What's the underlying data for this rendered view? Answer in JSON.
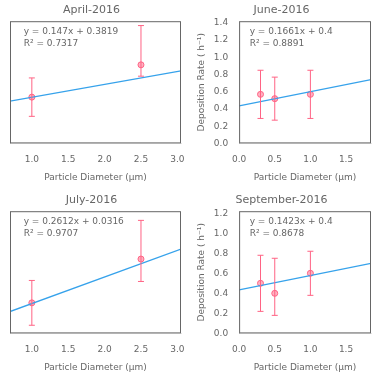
{
  "chart_data": [
    {
      "type": "scatter",
      "title": "April-2016",
      "x_label": "Particle Diameter (μm)",
      "annotations": [
        "y = 0.147x + 0.3819",
        "R² = 0.7317"
      ],
      "series": [
        {
          "type": "line",
          "x": [
            0.7,
            3.05
          ],
          "values": [
            0.4848,
            0.83025
          ]
        },
        {
          "type": "scatter",
          "marker": "circle",
          "x": [
            1.0,
            2.5
          ],
          "values": [
            0.53,
            0.9
          ],
          "error_low": [
            0.22,
            0.13
          ],
          "error_high": [
            0.22,
            0.45
          ]
        }
      ],
      "xlim": [
        0.7,
        3.05
      ],
      "ylim": [
        0.0,
        1.4
      ],
      "xticks": [
        {
          "value": 1,
          "label": "1.0"
        },
        1.5,
        {
          "value": 2,
          "label": "2.0"
        },
        2.5,
        {
          "value": 3,
          "label": "3.0"
        }
      ],
      "tick_labels": "x",
      "grid": false
    },
    {
      "type": "scatter",
      "title": "June-2016",
      "x_label": "Particle Diameter (μm)",
      "y_label": "Deposition Rate ( h⁻¹)",
      "annotations": [
        "y = 0.1661x + 0.4",
        "R² = 0.8891"
      ],
      "series": [
        {
          "type": "line",
          "x": [
            0.0,
            1.85
          ],
          "values": [
            0.435,
            0.742285
          ]
        },
        {
          "type": "scatter",
          "marker": "circle",
          "x": [
            0.3,
            0.5,
            1.0
          ],
          "values": [
            0.57,
            0.52,
            0.57
          ],
          "error_low": [
            0.28,
            0.25,
            0.28
          ],
          "error_high": [
            0.28,
            0.25,
            0.28
          ]
        }
      ],
      "xlim": [
        0.0,
        1.85
      ],
      "ylim": [
        0.0,
        1.42
      ],
      "xticks": [
        {
          "value": 0,
          "label": "0.0"
        },
        0.5,
        {
          "value": 1.0,
          "label": "1.0"
        },
        1.5
      ],
      "yticks": [
        {
          "value": 0,
          "label": "0.0"
        },
        0.2,
        0.4,
        0.6,
        0.8,
        {
          "value": 1.0,
          "label": "1.0"
        },
        1.2,
        1.4
      ],
      "grid": false
    },
    {
      "type": "scatter",
      "title": "July-2016",
      "x_label": "Particle Diameter (μm)",
      "annotations": [
        "y = 0.2612x + 0.0316",
        "R² = 0.9707"
      ],
      "series": [
        {
          "type": "line",
          "x": [
            0.7,
            3.05
          ],
          "values": [
            0.21444,
            0.82826
          ]
        },
        {
          "type": "scatter",
          "marker": "circle",
          "x": [
            1.0,
            2.5
          ],
          "values": [
            0.3,
            0.73
          ],
          "error_low": [
            0.22,
            0.22
          ],
          "error_high": [
            0.22,
            0.38
          ]
        }
      ],
      "xlim": [
        0.7,
        3.05
      ],
      "ylim": [
        0.0,
        1.2
      ],
      "xticks": [
        {
          "value": 1,
          "label": "1.0"
        },
        1.5,
        {
          "value": 2,
          "label": "2.0"
        },
        2.5,
        {
          "value": 3,
          "label": "3.0"
        }
      ],
      "tick_labels": "x",
      "grid": false
    },
    {
      "type": "scatter",
      "title": "September-2016",
      "x_label": "Particle Diameter (μm)",
      "y_label": "Deposition Rate ( h⁻¹)",
      "annotations": [
        "y = 0.1423x + 0.4",
        "R² = 0.8678"
      ],
      "series": [
        {
          "type": "line",
          "x": [
            0.0,
            1.85
          ],
          "values": [
            0.435,
            0.698255
          ]
        },
        {
          "type": "scatter",
          "marker": "circle",
          "x": [
            0.3,
            0.5,
            1.0
          ],
          "values": [
            0.5,
            0.4,
            0.6
          ],
          "error_low": [
            0.28,
            0.22,
            0.22
          ],
          "error_high": [
            0.28,
            0.35,
            0.22
          ]
        }
      ],
      "xlim": [
        0.0,
        1.85
      ],
      "ylim": [
        0.0,
        1.22
      ],
      "xticks": [
        {
          "value": 0,
          "label": "0.0"
        },
        0.5,
        {
          "value": 1.0,
          "label": "1.0"
        },
        1.5
      ],
      "yticks": [
        {
          "value": 0,
          "label": "0.0"
        },
        0.2,
        0.4,
        0.6,
        0.8,
        {
          "value": 1.0,
          "label": "1.0"
        },
        1.2
      ],
      "grid": false
    }
  ]
}
